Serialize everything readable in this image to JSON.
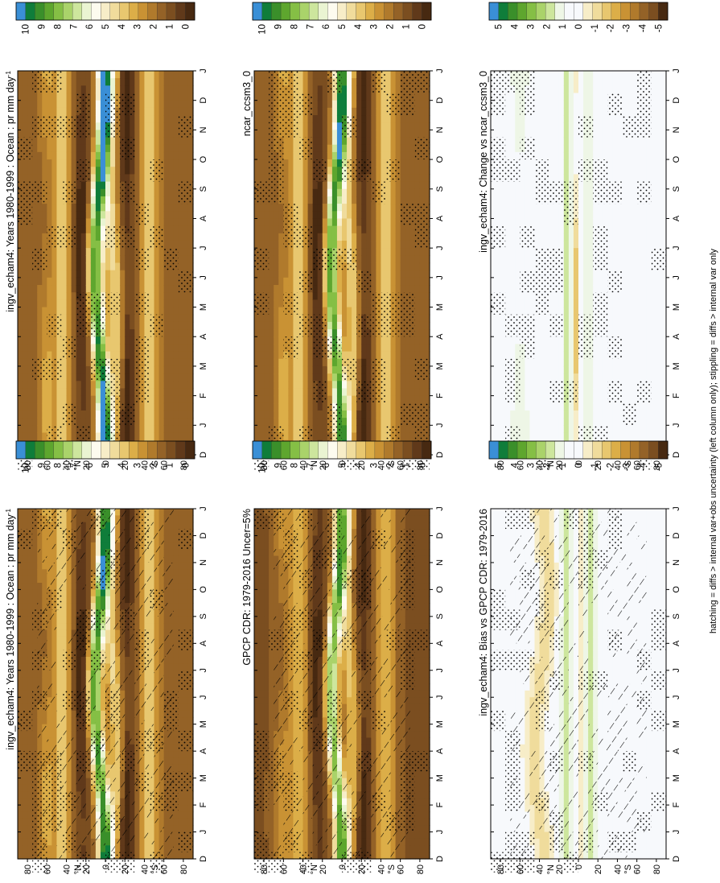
{
  "footer_note": "hatching = diffs > internal var+obs uncertainty (left column only); stippling = diffs > internal var only",
  "colorbar_absolute": [
    "10",
    "9",
    "8",
    "7",
    "6",
    "5",
    "4",
    "3",
    "2",
    "1",
    "0"
  ],
  "colorbar_diff": [
    "5",
    "4",
    "3",
    "2",
    "1",
    "0",
    "-1",
    "-2",
    "-3",
    "-4",
    "-5"
  ],
  "palette_absolute": [
    "#3a8fd6",
    "#0f7d3a",
    "#3a8f2a",
    "#5ea62e",
    "#85bf45",
    "#aad36a",
    "#cde69d",
    "#eaf4d2",
    "#fdfbef",
    "#f7edc8",
    "#f0dc9c",
    "#e8c76f",
    "#dcae48",
    "#c99234",
    "#b07a2c",
    "#946227",
    "#7b4e20",
    "#60391a",
    "#472911"
  ],
  "palette_diff": [
    "#3a8fd6",
    "#0f7d3a",
    "#3a8f2a",
    "#5ea62e",
    "#85bf45",
    "#aad36a",
    "#cde69d",
    "#eef6e6",
    "#f7f9fc",
    "#f7f9fc",
    "#f7edc8",
    "#f0dc9c",
    "#e8c76f",
    "#dcae48",
    "#c99234",
    "#b07a2c",
    "#946227",
    "#7b4e20",
    "#472911"
  ],
  "chart_data": [
    {
      "type": "heatmap",
      "title": "ingv_echam4: Years 1980-1999 : Ocean : pr mm day-1",
      "title_main": "ingv_echam4: Years 1980-1999 : Ocean : pr mm day",
      "title_sup": "-1",
      "x_ticks": [
        "D",
        "J",
        "F",
        "M",
        "A",
        "M",
        "J",
        "J",
        "A",
        "S",
        "O",
        "N",
        "D",
        "J"
      ],
      "y_ticks": [
        "80",
        "60",
        "40",
        "20",
        "0",
        "20",
        "40",
        "60",
        "80"
      ],
      "y_unit_labels": {
        "north": "°N",
        "south": "°S"
      },
      "ylim": [
        -90,
        90
      ],
      "overlay": "hatching+stippling",
      "colorbar": "absolute"
    },
    {
      "type": "heatmap",
      "title": "ingv_echam4: Years 1980-1999 : Ocean : pr mm day-1",
      "title_main": "ingv_echam4: Years 1980-1999 : Ocean : pr mm day",
      "title_sup": "-1",
      "x_ticks": [
        "D",
        "J",
        "F",
        "M",
        "A",
        "M",
        "J",
        "J",
        "A",
        "S",
        "O",
        "N",
        "D",
        "J"
      ],
      "y_ticks": [
        "80",
        "60",
        "40",
        "20",
        "0",
        "20",
        "40",
        "60",
        "80"
      ],
      "y_unit_labels": {
        "north": "°N",
        "south": "°S"
      },
      "ylim": [
        -90,
        90
      ],
      "overlay": "stippling",
      "colorbar": "absolute"
    },
    {
      "type": "heatmap",
      "title": "GPCP CDR: 1979-2016 Uncer=5%",
      "x_ticks": [
        "D",
        "J",
        "F",
        "M",
        "A",
        "M",
        "J",
        "J",
        "A",
        "S",
        "O",
        "N",
        "D",
        "J"
      ],
      "y_ticks": [
        "80",
        "60",
        "40",
        "20",
        "0",
        "20",
        "40",
        "60",
        "80"
      ],
      "y_unit_labels": {
        "north": "°N",
        "south": "°S"
      },
      "ylim": [
        -90,
        90
      ],
      "overlay": "hatching+stippling",
      "colorbar": "absolute"
    },
    {
      "type": "heatmap",
      "title": "ncar_ccsm3_0",
      "x_ticks": [
        "D",
        "J",
        "F",
        "M",
        "A",
        "M",
        "J",
        "J",
        "A",
        "S",
        "O",
        "N",
        "D",
        "J"
      ],
      "y_ticks": [
        "80",
        "60",
        "40",
        "20",
        "0",
        "20",
        "40",
        "60",
        "80"
      ],
      "y_unit_labels": {
        "north": "°N",
        "south": "°S"
      },
      "ylim": [
        -90,
        90
      ],
      "overlay": "stippling",
      "colorbar": "absolute"
    },
    {
      "type": "heatmap",
      "title": "ingv_echam4: Bias vs GPCP CDR: 1979-2016",
      "x_ticks": [
        "D",
        "J",
        "F",
        "M",
        "A",
        "M",
        "J",
        "J",
        "A",
        "S",
        "O",
        "N",
        "D",
        "J"
      ],
      "y_ticks": [
        "80",
        "60",
        "40",
        "20",
        "0",
        "20",
        "40",
        "60",
        "80"
      ],
      "y_unit_labels": {
        "north": "°N",
        "south": "°S"
      },
      "ylim": [
        -90,
        90
      ],
      "overlay": "hatching+stippling",
      "colorbar": "diff"
    },
    {
      "type": "heatmap",
      "title": "ingv_echam4: Change vs ncar_ccsm3_0",
      "x_ticks": [
        "D",
        "J",
        "F",
        "M",
        "A",
        "M",
        "J",
        "J",
        "A",
        "S",
        "O",
        "N",
        "D",
        "J"
      ],
      "y_ticks": [
        "80",
        "60",
        "40",
        "20",
        "0",
        "20",
        "40",
        "60",
        "80"
      ],
      "y_unit_labels": {
        "north": "°N",
        "south": "°S"
      },
      "ylim": [
        -90,
        90
      ],
      "overlay": "stippling",
      "colorbar": "diff"
    }
  ]
}
